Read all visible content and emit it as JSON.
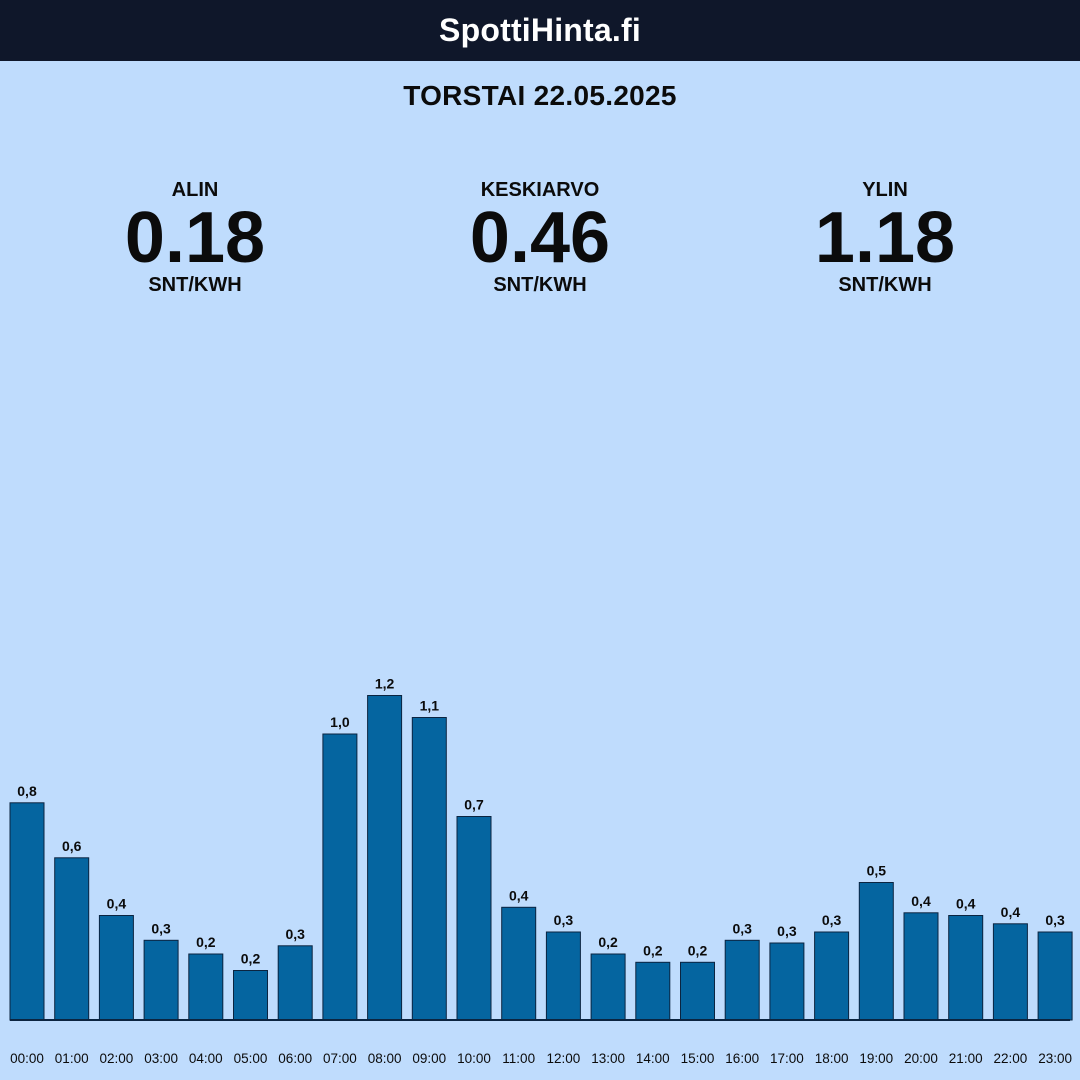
{
  "header": {
    "site_title": "SpottiHinta.fi"
  },
  "date_title": "TORSTAI 22.05.2025",
  "stats": {
    "min": {
      "label": "ALIN",
      "value": "0.18",
      "unit": "SNT/KWH"
    },
    "avg": {
      "label": "KESKIARVO",
      "value": "0.46",
      "unit": "SNT/KWH"
    },
    "max": {
      "label": "YLIN",
      "value": "1.18",
      "unit": "SNT/KWH"
    }
  },
  "colors": {
    "background": "#bfdcfd",
    "header": "#0f172a",
    "bar": "#0565a0",
    "bar_border": "#0b2440",
    "text": "#0b0b0b"
  },
  "chart_data": {
    "type": "bar",
    "categories": [
      "00:00",
      "01:00",
      "02:00",
      "03:00",
      "04:00",
      "05:00",
      "06:00",
      "07:00",
      "08:00",
      "09:00",
      "10:00",
      "11:00",
      "12:00",
      "13:00",
      "14:00",
      "15:00",
      "16:00",
      "17:00",
      "18:00",
      "19:00",
      "20:00",
      "21:00",
      "22:00",
      "23:00"
    ],
    "values": [
      0.79,
      0.59,
      0.38,
      0.29,
      0.24,
      0.18,
      0.27,
      1.04,
      1.18,
      1.1,
      0.74,
      0.41,
      0.32,
      0.24,
      0.21,
      0.21,
      0.29,
      0.28,
      0.32,
      0.5,
      0.39,
      0.38,
      0.35,
      0.32
    ],
    "data_labels": [
      "0,8",
      "0,6",
      "0,4",
      "0,3",
      "0,2",
      "0,2",
      "0,3",
      "1,0",
      "1,2",
      "1,1",
      "0,7",
      "0,4",
      "0,3",
      "0,2",
      "0,2",
      "0,2",
      "0,3",
      "0,3",
      "0,3",
      "0,5",
      "0,4",
      "0,4",
      "0,4",
      "0,3"
    ],
    "title": "",
    "xlabel": "",
    "ylabel": "",
    "ylim": [
      0,
      1.2
    ]
  }
}
